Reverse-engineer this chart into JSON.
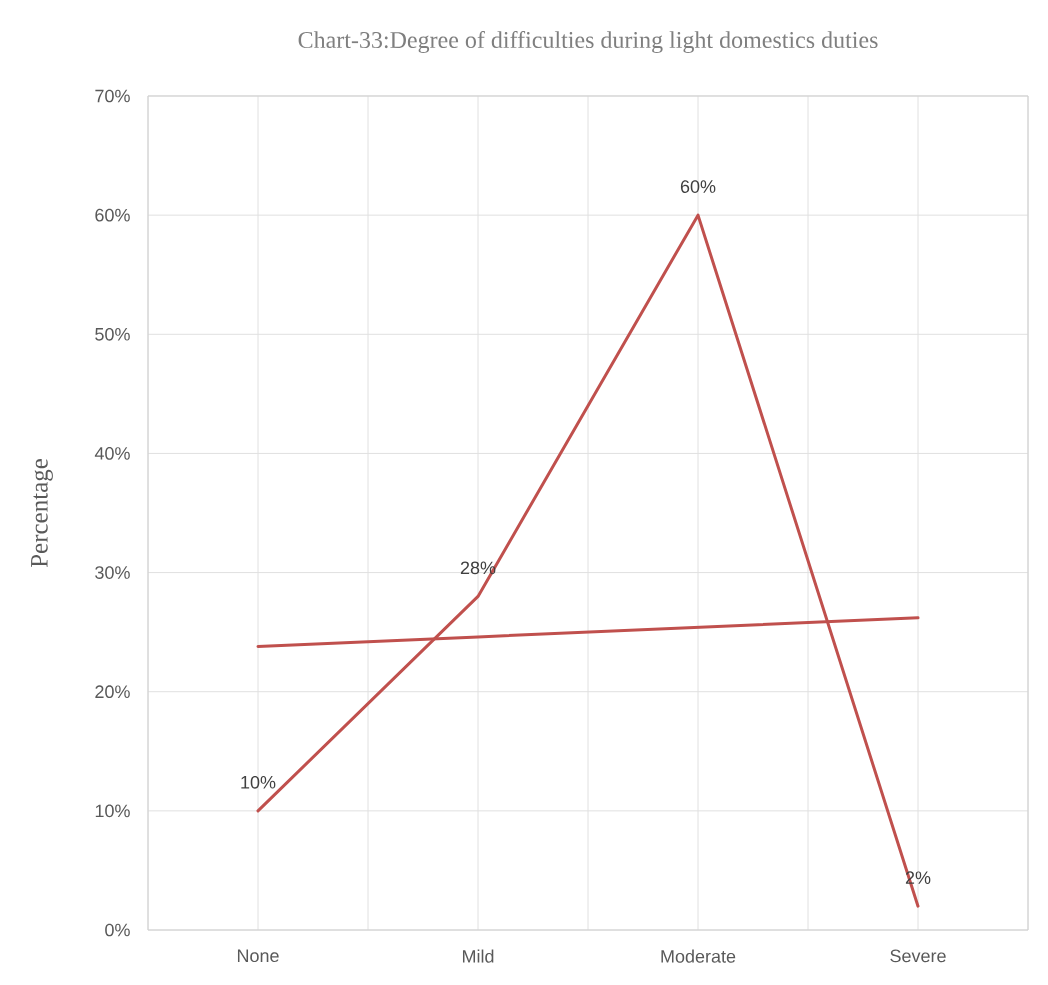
{
  "chart_data": {
    "type": "line",
    "title": "Chart-33:Degree of difficulties during light domestics duties",
    "ylabel": "Percentage",
    "categories": [
      "None",
      "Mild",
      "Moderate",
      "Severe"
    ],
    "series": [
      {
        "color": "#c0504d",
        "values": [
          10,
          28,
          60,
          2
        ],
        "value_labels": [
          "10%",
          "28%",
          "60%",
          "2%"
        ]
      },
      {
        "color": "#c0504d",
        "values": [
          23.8,
          24.6,
          25.4,
          26.2
        ]
      }
    ],
    "ylim": [
      0,
      70
    ],
    "yticks": [
      {
        "value": 0,
        "label": "0%"
      },
      {
        "value": 10,
        "label": "10%"
      },
      {
        "value": 20,
        "label": "20%"
      },
      {
        "value": 30,
        "label": "30%"
      },
      {
        "value": 40,
        "label": "40%"
      },
      {
        "value": 50,
        "label": "50%"
      },
      {
        "value": 60,
        "label": "60%"
      },
      {
        "value": 70,
        "label": "70%"
      }
    ],
    "grid": true
  }
}
